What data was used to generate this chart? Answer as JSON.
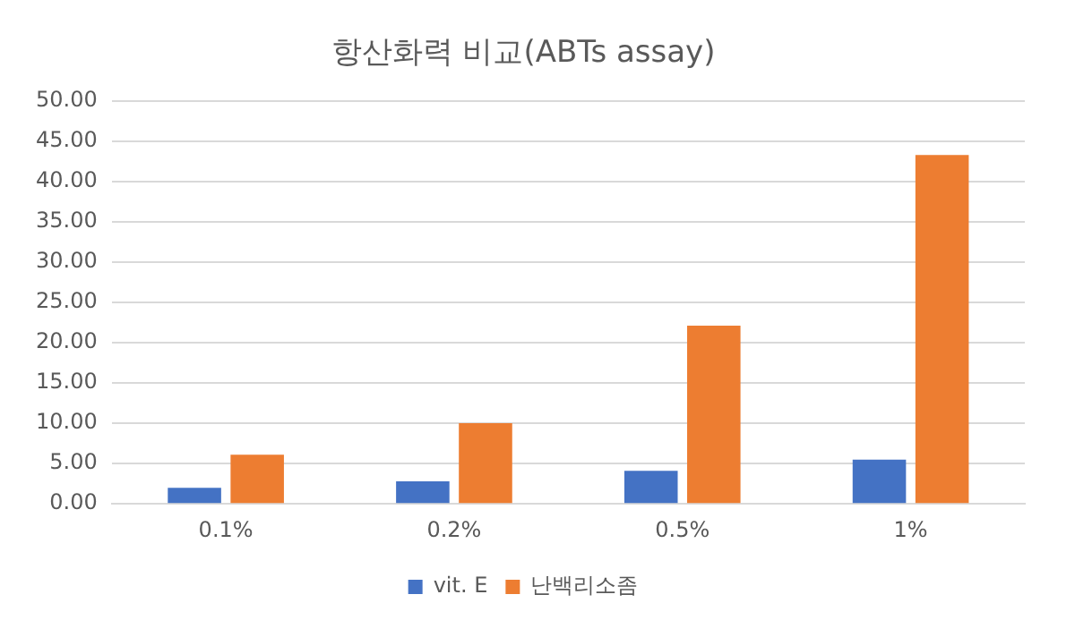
{
  "chart_data": {
    "type": "bar",
    "title": "항산화력 비교(ABTs assay)",
    "categories": [
      "0.1%",
      "0.2%",
      "0.5%",
      "1%"
    ],
    "series": [
      {
        "name": "vit. E",
        "color": "#4472c4",
        "values": [
          2.0,
          2.8,
          4.1,
          5.5
        ]
      },
      {
        "name": "난백리소좀",
        "color": "#ed7d31",
        "values": [
          6.1,
          10.0,
          22.1,
          43.3
        ]
      }
    ],
    "ylim": [
      0,
      50
    ],
    "yticks": [
      {
        "value": 0,
        "label": "0.00"
      },
      {
        "value": 5,
        "label": "5.00"
      },
      {
        "value": 10,
        "label": "10.00"
      },
      {
        "value": 15,
        "label": "15.00"
      },
      {
        "value": 20,
        "label": "20.00"
      },
      {
        "value": 25,
        "label": "25.00"
      },
      {
        "value": 30,
        "label": "30.00"
      },
      {
        "value": 35,
        "label": "35.00"
      },
      {
        "value": 40,
        "label": "40.00"
      },
      {
        "value": 45,
        "label": "45.00"
      },
      {
        "value": 50,
        "label": "50.00"
      }
    ],
    "grid": "y",
    "legend": "bottom"
  }
}
